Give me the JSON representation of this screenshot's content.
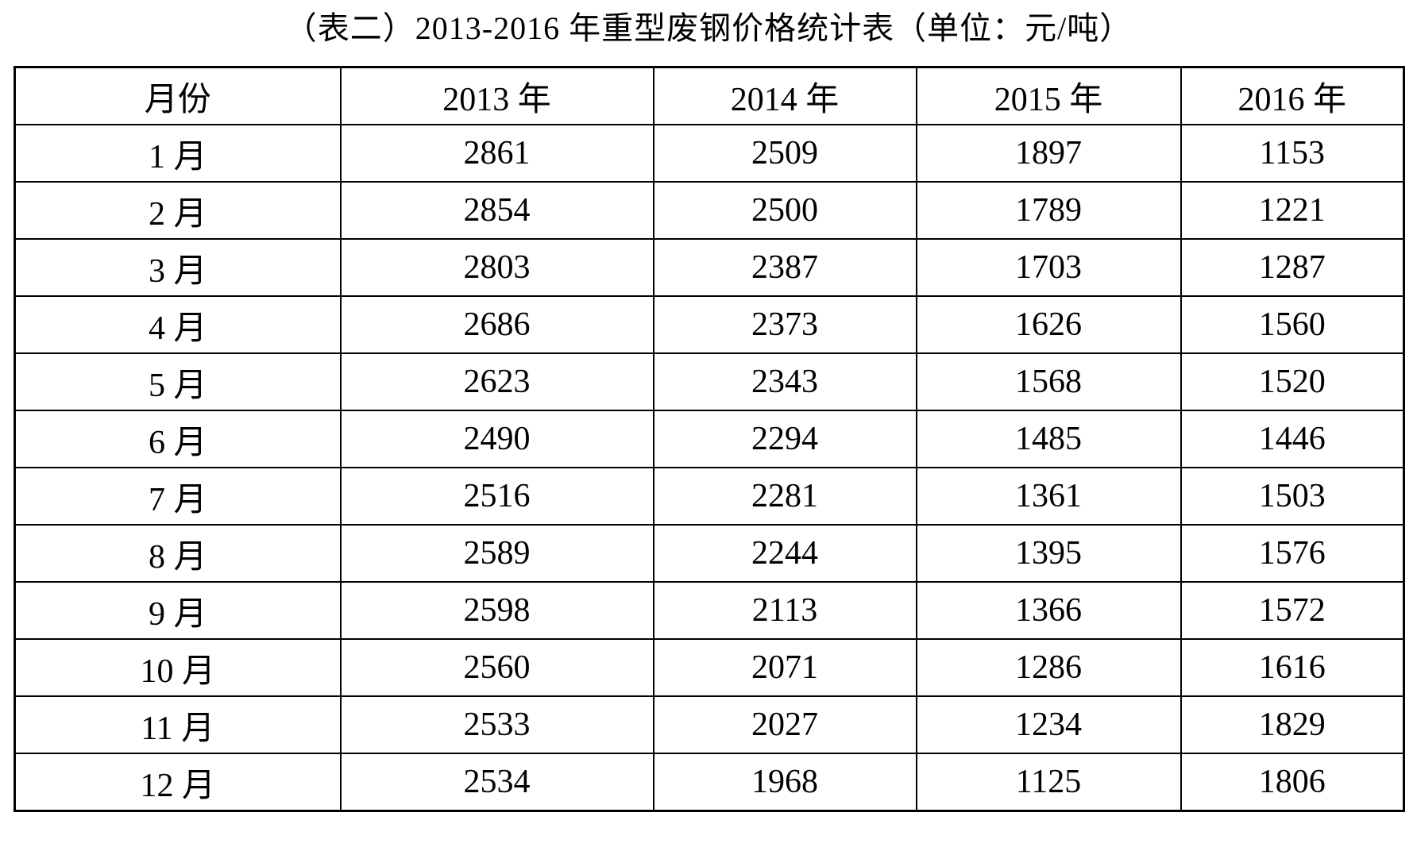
{
  "title": "（表二）2013-2016 年重型废钢价格统计表（单位：元/吨）",
  "table": {
    "headers": [
      "月份",
      "2013 年",
      "2014 年",
      "2015 年",
      "2016 年"
    ],
    "rows": [
      [
        "1 月",
        "2861",
        "2509",
        "1897",
        "1153"
      ],
      [
        "2 月",
        "2854",
        "2500",
        "1789",
        "1221"
      ],
      [
        "3 月",
        "2803",
        "2387",
        "1703",
        "1287"
      ],
      [
        "4 月",
        "2686",
        "2373",
        "1626",
        "1560"
      ],
      [
        "5 月",
        "2623",
        "2343",
        "1568",
        "1520"
      ],
      [
        "6 月",
        "2490",
        "2294",
        "1485",
        "1446"
      ],
      [
        "7 月",
        "2516",
        "2281",
        "1361",
        "1503"
      ],
      [
        "8 月",
        "2589",
        "2244",
        "1395",
        "1576"
      ],
      [
        "9 月",
        "2598",
        "2113",
        "1366",
        "1572"
      ],
      [
        "10 月",
        "2560",
        "2071",
        "1286",
        "1616"
      ],
      [
        "11 月",
        "2533",
        "2027",
        "1234",
        "1829"
      ],
      [
        "12 月",
        "2534",
        "1968",
        "1125",
        "1806"
      ]
    ]
  }
}
